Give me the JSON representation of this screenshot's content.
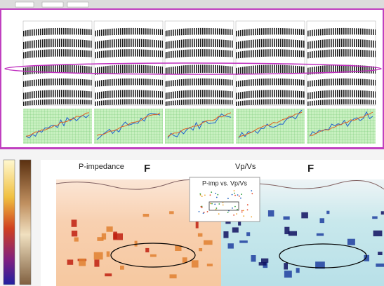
{
  "lower_panel": {
    "left_title": "P-impedance",
    "left_marker": "F",
    "right_title": "Vp/Vs",
    "right_marker": "F",
    "inset_title": "P-imp vs. Vp/Vs"
  }
}
